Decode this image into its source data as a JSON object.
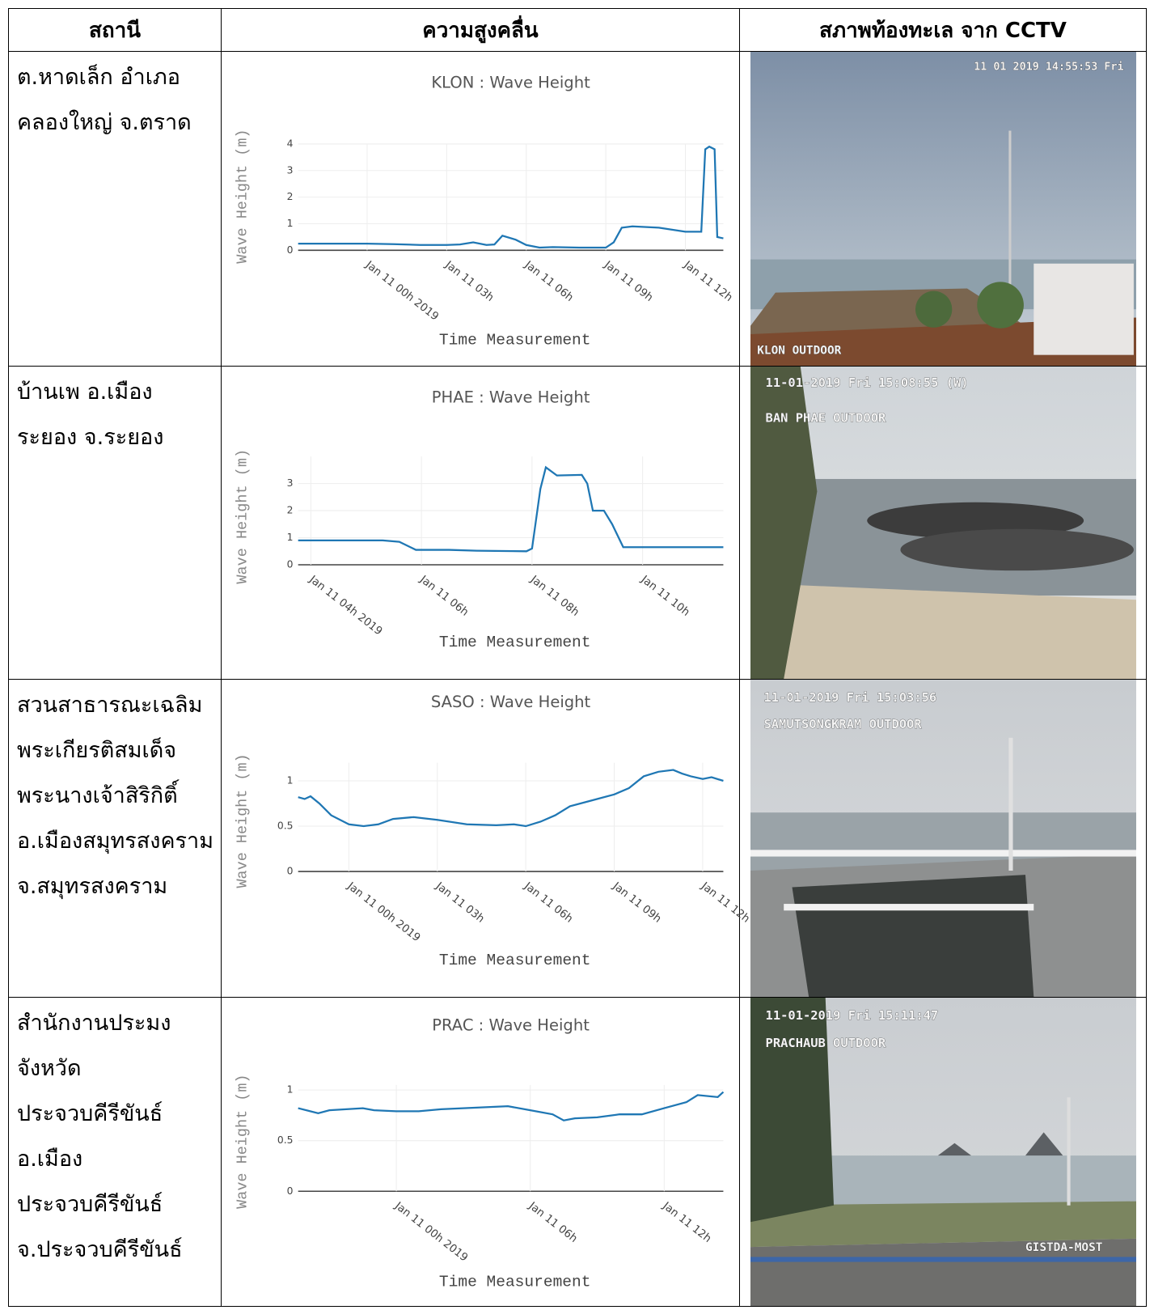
{
  "header": [
    "สถานี",
    "ความสูงคลื่น",
    "สภาพท้องทะเล จาก CCTV"
  ],
  "rows": [
    {
      "station": [
        "ต.หาดเล็ก อำเภอ",
        "คลองใหญ่ จ.ตราด"
      ],
      "chart": {
        "type": "line",
        "title": "KLON : Wave Height",
        "y_label": "Wave Height (m)",
        "x_label": "Time Measurement",
        "color": "#1f77b4",
        "xlim": [
          -2.6,
          13.43
        ],
        "ylim": [
          0,
          4
        ],
        "yticks": [
          0,
          1,
          2,
          3,
          4
        ],
        "xticks": [
          {
            "value": 0,
            "label": "Jan 11 00h 2019"
          },
          {
            "value": 3,
            "label": "Jan 11 03h"
          },
          {
            "value": 6,
            "label": "Jan 11 06h"
          },
          {
            "value": 9,
            "label": "Jan 11 09h"
          },
          {
            "value": 12,
            "label": "Jan 11 12h"
          }
        ],
        "x": [
          -2.6,
          -1,
          0,
          1,
          2,
          3,
          3.5,
          4,
          4.5,
          4.8,
          5.1,
          5.6,
          6,
          6.5,
          7,
          8,
          9,
          9.3,
          9.6,
          10,
          11,
          12,
          12.6,
          12.75,
          12.9,
          13.1,
          13.2,
          13.43
        ],
        "values": [
          0.25,
          0.25,
          0.25,
          0.23,
          0.2,
          0.2,
          0.22,
          0.3,
          0.2,
          0.22,
          0.55,
          0.4,
          0.2,
          0.1,
          0.12,
          0.1,
          0.1,
          0.3,
          0.85,
          0.9,
          0.85,
          0.7,
          0.7,
          3.8,
          3.9,
          3.8,
          0.5,
          0.45
        ]
      },
      "cctv": {
        "timestamp": "11 01 2019 14:55:53 Fri",
        "camera": "KLON OUTDOOR"
      }
    },
    {
      "station": [
        "บ้านเพ อ.เมือง",
        "ระยอง จ.ระยอง"
      ],
      "chart": {
        "type": "line",
        "title": "PHAE : Wave Height",
        "y_label": "Wave Height (m)",
        "x_label": "Time Measurement",
        "color": "#1f77b4",
        "xlim": [
          3.77,
          11.46
        ],
        "ylim": [
          0,
          4
        ],
        "yticks": [
          0,
          1,
          2,
          3
        ],
        "xticks": [
          {
            "value": 4,
            "label": "Jan 11 04h 2019"
          },
          {
            "value": 6,
            "label": "Jan 11 06h"
          },
          {
            "value": 8,
            "label": "Jan 11 08h"
          },
          {
            "value": 10,
            "label": "Jan 11 10h"
          }
        ],
        "x": [
          3.77,
          5.3,
          5.6,
          5.9,
          6.5,
          7.0,
          7.9,
          8.0,
          8.15,
          8.25,
          8.45,
          8.9,
          9.0,
          9.1,
          9.3,
          9.45,
          9.65,
          10.5,
          11.46
        ],
        "values": [
          0.9,
          0.9,
          0.85,
          0.55,
          0.55,
          0.52,
          0.5,
          0.6,
          2.8,
          3.6,
          3.3,
          3.32,
          3.0,
          2.0,
          2.0,
          1.5,
          0.65,
          0.65,
          0.65
        ]
      },
      "cctv": {
        "timestamp": "11-01-2019 Fri 15:08:55 (W)",
        "camera": "BAN PHAE OUTDOOR"
      }
    },
    {
      "station": [
        "สวนสาธารณะเฉลิม",
        "พระเกียรติสมเด็จ",
        "พระนางเจ้าสิริกิติ์",
        "อ.เมืองสมุทรสงคราม",
        "จ.สมุทรสงคราม"
      ],
      "chart": {
        "type": "line",
        "title": "SASO : Wave Height",
        "y_label": "Wave Height (m)",
        "x_label": "Time Measurement",
        "color": "#1f77b4",
        "xlim": [
          -1.72,
          12.7
        ],
        "ylim": [
          0,
          1.2
        ],
        "yticks": [
          0,
          0.5,
          1
        ],
        "xticks": [
          {
            "value": 0,
            "label": "Jan 11 00h 2019"
          },
          {
            "value": 3,
            "label": "Jan 11 03h"
          },
          {
            "value": 6,
            "label": "Jan 11 06h"
          },
          {
            "value": 9,
            "label": "Jan 11 09h"
          },
          {
            "value": 12,
            "label": "Jan 11 12h"
          }
        ],
        "x": [
          -1.72,
          -1.5,
          -1.3,
          -1,
          -0.6,
          0,
          0.5,
          1,
          1.5,
          2.2,
          3,
          4,
          5,
          5.6,
          6,
          6.5,
          7,
          7.5,
          8.2,
          9,
          9.5,
          10,
          10.5,
          11,
          11.3,
          11.6,
          12,
          12.3,
          12.7
        ],
        "values": [
          0.82,
          0.8,
          0.83,
          0.75,
          0.62,
          0.52,
          0.5,
          0.52,
          0.58,
          0.6,
          0.57,
          0.52,
          0.51,
          0.52,
          0.5,
          0.55,
          0.62,
          0.72,
          0.78,
          0.85,
          0.92,
          1.05,
          1.1,
          1.12,
          1.08,
          1.05,
          1.02,
          1.04,
          1.0
        ]
      },
      "cctv": {
        "timestamp": "11-01-2019 Fri 15:03:56",
        "camera": "SAMUTSONGKRAM OUTDOOR"
      }
    },
    {
      "station": [
        "สำนักงานประมง",
        "จังหวัด",
        "ประจวบคีรีขันธ์",
        "อ.เมือง",
        "ประจวบคีรีขันธ์",
        "จ.ประจวบคีรีขันธ์"
      ],
      "chart": {
        "type": "line",
        "title": "PRAC : Wave Height",
        "y_label": "Wave Height (m)",
        "x_label": "Time Measurement",
        "color": "#1f77b4",
        "xlim": [
          -4.4,
          14.65
        ],
        "ylim": [
          0,
          1.05
        ],
        "yticks": [
          0,
          0.5,
          1
        ],
        "xticks": [
          {
            "value": 0,
            "label": "Jan 11 00h 2019"
          },
          {
            "value": 6,
            "label": "Jan 11 06h"
          },
          {
            "value": 12,
            "label": "Jan 11 12h"
          }
        ],
        "x": [
          -4.4,
          -3.5,
          -3,
          -1.5,
          -1,
          0,
          1,
          2,
          3,
          4,
          5,
          6,
          7,
          7.5,
          8,
          9,
          10,
          11,
          12,
          13,
          13.5,
          14.4,
          14.65
        ],
        "values": [
          0.82,
          0.77,
          0.8,
          0.82,
          0.8,
          0.79,
          0.79,
          0.81,
          0.82,
          0.83,
          0.84,
          0.8,
          0.76,
          0.7,
          0.72,
          0.73,
          0.76,
          0.76,
          0.82,
          0.88,
          0.95,
          0.93,
          0.98
        ]
      },
      "cctv": {
        "timestamp": "11-01-2019 Fri 15:11:47",
        "camera": "PRACHAUB OUTDOOR",
        "watermark": "GISTDA-MOST"
      }
    }
  ]
}
